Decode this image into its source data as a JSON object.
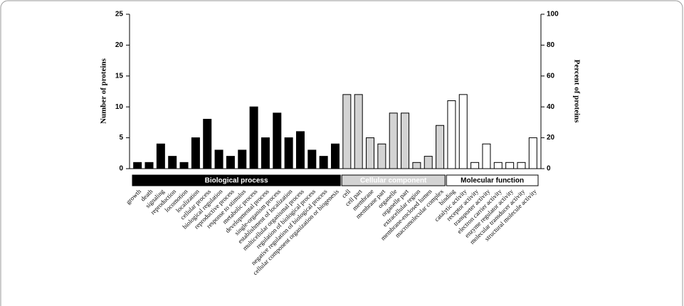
{
  "chart_data": {
    "type": "bar",
    "y_label": "Number of proteins",
    "y2_label": "Percent of proteins",
    "categories": [
      "growth",
      "death",
      "signaling",
      "reproduction",
      "locomotion",
      "localization",
      "cellular process",
      "biological regulation",
      "reproductive process",
      "response to stimulus",
      "metabolic process",
      "developmental process",
      "single-organism process",
      "establishment of localization",
      "multicellular organismal process",
      "regulation of biological process",
      "negative regulation of biological process",
      "cellular component organization or biogenesis",
      "cell",
      "cell part",
      "membrane",
      "membrane part",
      "organelle",
      "organelle part",
      "extracellular region",
      "membrane-enclosed lumen",
      "macromolecular complex",
      "binding",
      "catalytic activity",
      "receptor activity",
      "transporter activity",
      "electron carrier activity",
      "enzyme regulator activity",
      "molecular transducer activity",
      "structural molecule activity"
    ],
    "series": [
      {
        "name": "Biological process",
        "color": "#000000",
        "values": [
          1,
          1,
          4,
          2,
          1,
          5,
          8,
          3,
          2,
          3,
          10,
          5,
          9,
          5,
          6,
          3,
          2,
          4,
          null,
          null,
          null,
          null,
          null,
          null,
          null,
          null,
          null,
          null,
          null,
          null,
          null,
          null,
          null,
          null,
          null
        ]
      },
      {
        "name": "Cellular component",
        "color": "#d3d3d3",
        "values": [
          null,
          null,
          null,
          null,
          null,
          null,
          null,
          null,
          null,
          null,
          null,
          null,
          null,
          null,
          null,
          null,
          null,
          null,
          12,
          12,
          5,
          4,
          9,
          9,
          1,
          2,
          7,
          null,
          null,
          null,
          null,
          null,
          null,
          null,
          null
        ]
      },
      {
        "name": "Molecular function",
        "color": "#ffffff",
        "values": [
          null,
          null,
          null,
          null,
          null,
          null,
          null,
          null,
          null,
          null,
          null,
          null,
          null,
          null,
          null,
          null,
          null,
          null,
          null,
          null,
          null,
          null,
          null,
          null,
          null,
          null,
          null,
          11,
          12,
          1,
          4,
          1,
          1,
          1,
          5
        ]
      }
    ],
    "ylim": [
      0,
      25
    ],
    "yticks": [
      0,
      5,
      10,
      15,
      20,
      25
    ],
    "y2lim": [
      0,
      100
    ],
    "y2ticks": [
      0,
      20,
      40,
      60,
      80,
      100
    ]
  }
}
